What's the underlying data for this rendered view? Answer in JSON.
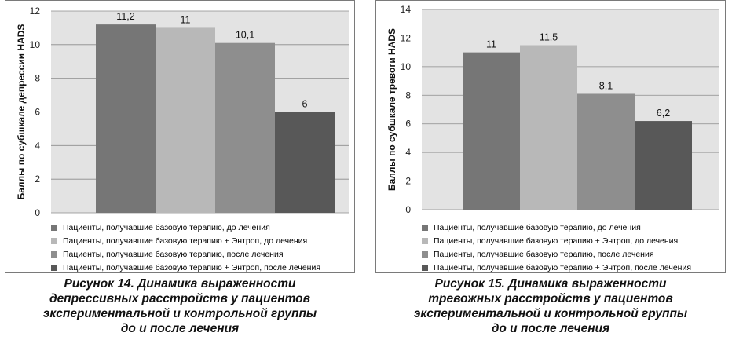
{
  "colors": {
    "plot_bg": "#e3e3e3",
    "grid": "#8c8c8c",
    "series": [
      "#767676",
      "#b8b8b8",
      "#8e8e8e",
      "#585858"
    ]
  },
  "legend": [
    "Пациенты, получавшие базовую терапию, до лечения",
    "Пациенты, получавшие базовую терапию + Энтроп, до лечения",
    "Пациенты, получавшие базовую терапию, после лечения",
    "Пациенты, получавшие базовую терапию + Энтроп, после лечения"
  ],
  "chart_data": [
    {
      "type": "bar",
      "ylabel": "Баллы по субшкале депрессии HADS",
      "ylim": [
        0,
        12
      ],
      "yticks": [
        0,
        2,
        4,
        6,
        8,
        10,
        12
      ],
      "grid": true,
      "legend_position": "bottom",
      "series": [
        {
          "name": "Пациенты, получавшие базовую терапию, до лечения",
          "value": 11.2,
          "label": "11,2"
        },
        {
          "name": "Пациенты, получавшие базовую терапию + Энтроп, до лечения",
          "value": 11,
          "label": "11"
        },
        {
          "name": "Пациенты, получавшие базовую терапию, после лечения",
          "value": 10.1,
          "label": "10,1"
        },
        {
          "name": "Пациенты, получавшие базовую терапию + Энтроп, после лечения",
          "value": 6,
          "label": "6"
        }
      ],
      "caption": [
        "Рисунок 14. Динамика выраженности",
        "депрессивных расстройств у пациентов",
        "экспериментальной и контрольной группы",
        "до и после лечения"
      ]
    },
    {
      "type": "bar",
      "ylabel": "Баллы по субшкале тревоги HADS",
      "ylim": [
        0,
        14
      ],
      "yticks": [
        0,
        2,
        4,
        6,
        8,
        10,
        12,
        14
      ],
      "grid": true,
      "legend_position": "bottom",
      "series": [
        {
          "name": "Пациенты, получавшие базовую терапию, до лечения",
          "value": 11,
          "label": "11"
        },
        {
          "name": "Пациенты, получавшие базовую терапию + Энтроп, до лечения",
          "value": 11.5,
          "label": "11,5"
        },
        {
          "name": "Пациенты, получавшие базовую терапию, после лечения",
          "value": 8.1,
          "label": "8,1"
        },
        {
          "name": "Пациенты, получавшие базовую терапию + Энтроп, после лечения",
          "value": 6.2,
          "label": "6,2"
        }
      ],
      "caption": [
        "Рисунок 15. Динамика выраженности",
        "тревожных расстройств у пациентов",
        "экспериментальной и контрольной группы",
        "до и после лечения"
      ]
    }
  ]
}
